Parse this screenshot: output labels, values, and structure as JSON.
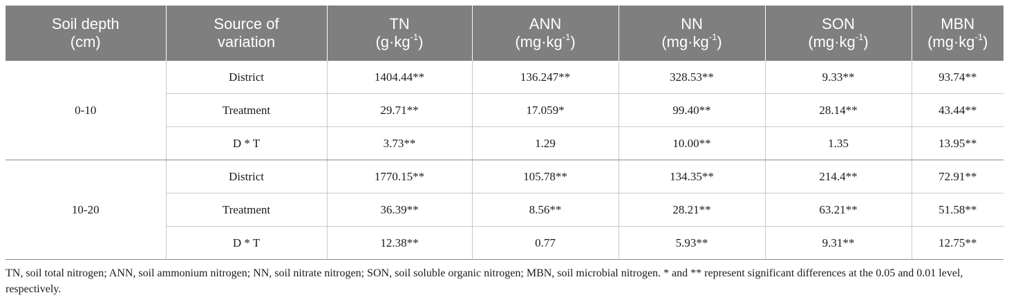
{
  "headers": [
    {
      "line1": "Soil depth",
      "line2": "(cm)",
      "sup": ""
    },
    {
      "line1": "Source of",
      "line2": "variation",
      "sup": ""
    },
    {
      "line1": "TN",
      "line2": "(g·kg",
      "sup": "-1",
      "close": ")"
    },
    {
      "line1": "ANN",
      "line2": "(mg·kg",
      "sup": "-1",
      "close": ")"
    },
    {
      "line1": "NN",
      "line2": "(mg·kg",
      "sup": "-1",
      "close": ")"
    },
    {
      "line1": "SON",
      "line2": "(mg·kg",
      "sup": "-1",
      "close": ")"
    },
    {
      "line1": "MBN",
      "line2": "(mg·kg",
      "sup": "-1",
      "close": ")"
    }
  ],
  "groups": [
    {
      "depth": "0-10",
      "rows": [
        {
          "source": "District",
          "values": [
            "1404.44**",
            "136.247**",
            "328.53**",
            "9.33**",
            "93.74**"
          ]
        },
        {
          "source": "Treatment",
          "values": [
            "29.71**",
            "17.059*",
            "99.40**",
            "28.14**",
            "43.44**"
          ]
        },
        {
          "source": "D * T",
          "values": [
            "3.73**",
            "1.29",
            "10.00**",
            "1.35",
            "13.95**"
          ]
        }
      ]
    },
    {
      "depth": "10-20",
      "rows": [
        {
          "source": "District",
          "values": [
            "1770.15**",
            "105.78**",
            "134.35**",
            "214.4**",
            "72.91**"
          ]
        },
        {
          "source": "Treatment",
          "values": [
            "36.39**",
            "8.56**",
            "28.21**",
            "63.21**",
            "51.58**"
          ]
        },
        {
          "source": "D * T",
          "values": [
            "12.38**",
            "0.77",
            "5.93**",
            "9.31**",
            "12.75**"
          ]
        }
      ]
    }
  ],
  "footnote": "TN, soil total nitrogen; ANN, soil ammonium nitrogen; NN, soil nitrate nitrogen; SON, soil soluble organic nitrogen; MBN, soil microbial nitrogen. * and ** represent significant differences at the 0.05 and 0.01 level, respectively."
}
